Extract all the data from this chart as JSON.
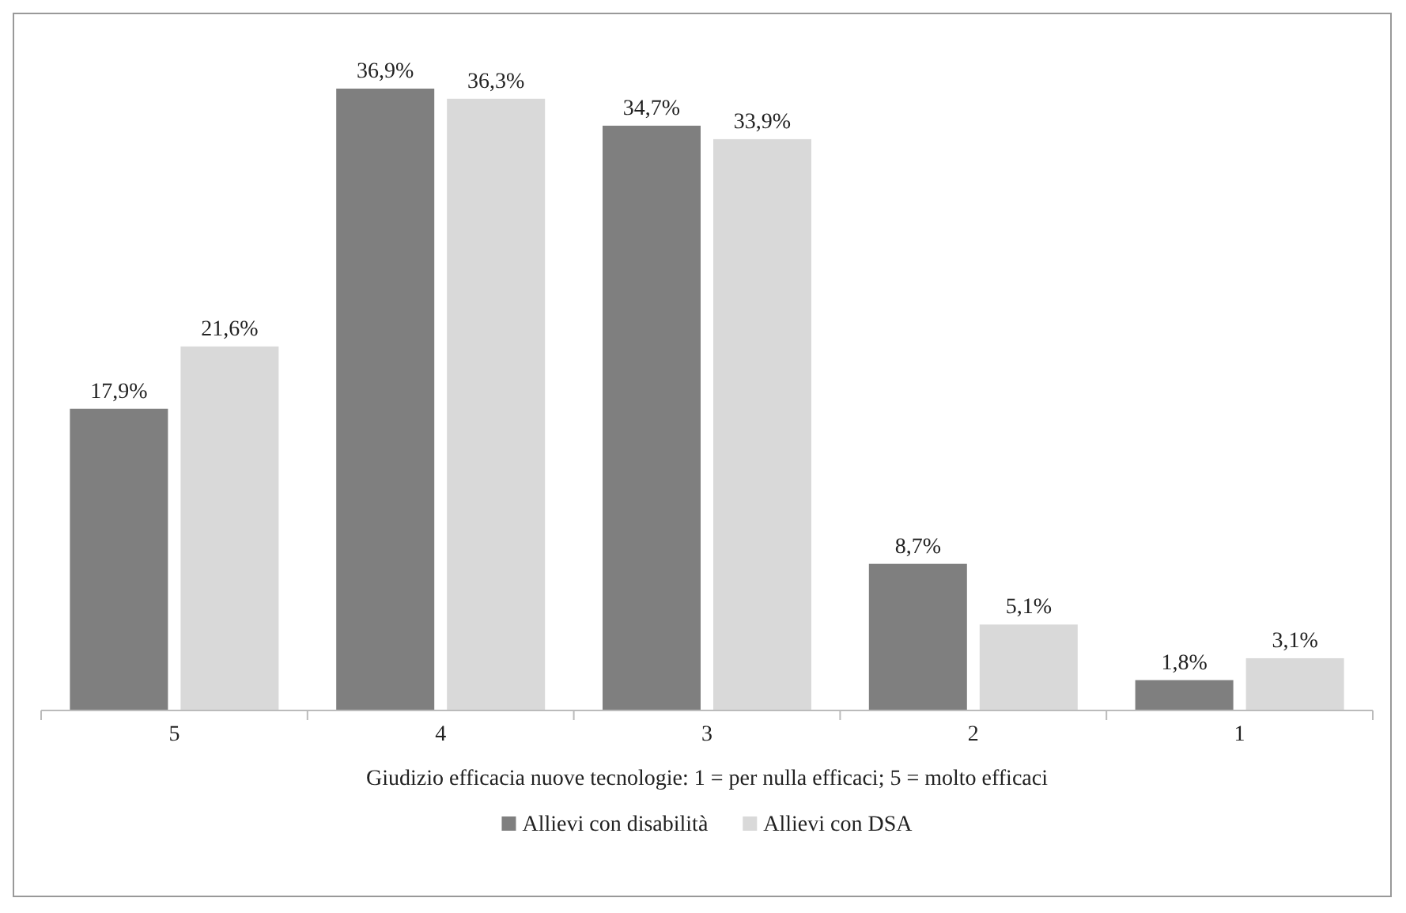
{
  "chart_data": {
    "type": "bar",
    "xlabel": "Giudizio efficacia nuove tecnologie: 1 = per nulla efficaci; 5 = molto efficaci",
    "categories": [
      "5",
      "4",
      "3",
      "2",
      "1"
    ],
    "series": [
      {
        "name": "Allievi con disabilità",
        "color": "#7f7f7f",
        "values": [
          17.9,
          36.9,
          34.7,
          8.7,
          1.8
        ],
        "value_labels": [
          "17,9%",
          "36,9%",
          "34,7%",
          "8,7%",
          "1,8%"
        ]
      },
      {
        "name": "Allievi con DSA",
        "color": "#d9d9d9",
        "values": [
          21.6,
          36.3,
          33.9,
          5.1,
          3.1
        ],
        "value_labels": [
          "21,6%",
          "36,3%",
          "33,9%",
          "5,1%",
          "3,1%"
        ]
      }
    ],
    "legend": "bottom"
  }
}
